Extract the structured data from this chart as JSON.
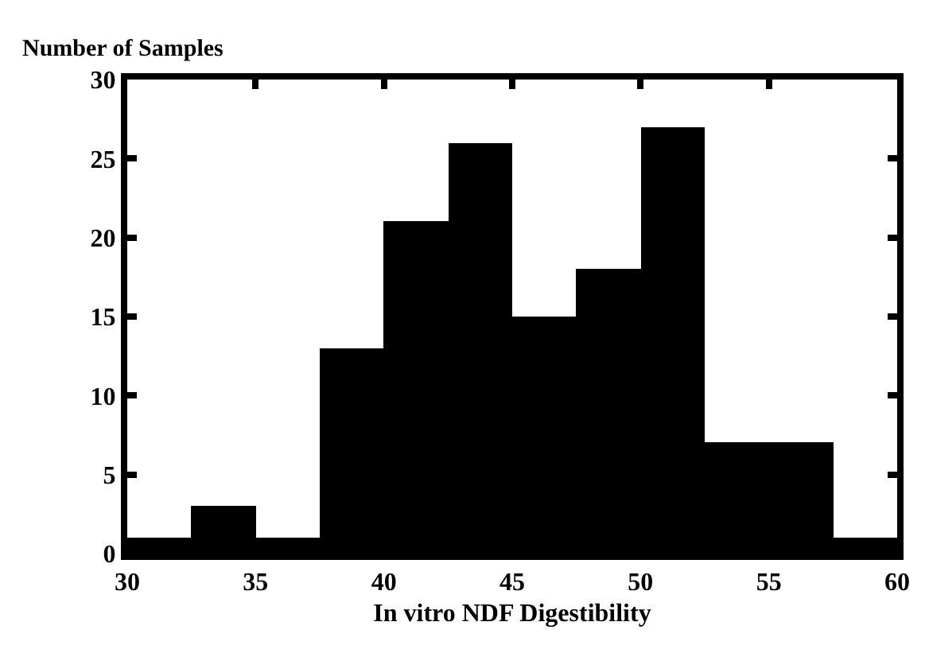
{
  "chart_data": {
    "type": "histogram",
    "xlabel": "In vitro NDF Digestibility",
    "ylabel": "Number of Samples",
    "bins": [
      30,
      32.5,
      35,
      37.5,
      40,
      42.5,
      45,
      47.5,
      50,
      52.5,
      55,
      57.5,
      60
    ],
    "values": [
      1,
      3,
      1,
      13,
      21,
      26,
      15,
      18,
      27,
      7,
      7,
      1
    ],
    "color": "#000000",
    "xlim": [
      30,
      60
    ],
    "xticks": [
      30,
      35,
      40,
      45,
      50,
      55,
      60
    ],
    "ylim": [
      0,
      30
    ],
    "yticks": [
      0,
      5,
      10,
      15,
      20,
      25,
      30
    ],
    "grid": false
  }
}
